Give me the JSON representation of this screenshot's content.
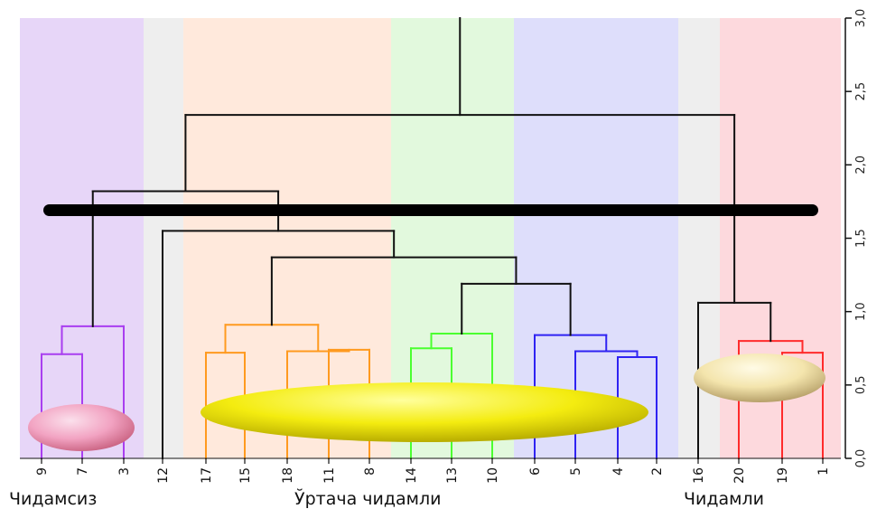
{
  "chart_data": {
    "type": "dendrogram",
    "y_axis": {
      "min": 0.0,
      "max": 3.0,
      "ticks": [
        "0,0",
        "0,5",
        "1,0",
        "1,5",
        "2,0",
        "2,5",
        "3,0"
      ],
      "side": "right"
    },
    "leaves": [
      "9",
      "7",
      "3",
      "12",
      "17",
      "15",
      "18",
      "11",
      "8",
      "14",
      "13",
      "10",
      "6",
      "5",
      "4",
      "2",
      "16",
      "20",
      "19",
      "1"
    ],
    "groups": [
      {
        "label": "Чидамсиз",
        "color": "#e7d6f8"
      },
      {
        "label": "Ўртача чидамли",
        "color": "#ffe9dc"
      },
      {
        "label": "Чидамли",
        "color": "#fdd9dd"
      }
    ],
    "background_bands": [
      {
        "color": "#e7d6f8"
      },
      {
        "color": "#eeeeee"
      },
      {
        "color": "#ffe9dc"
      },
      {
        "color": "#e2f9dd"
      },
      {
        "color": "#dedefb"
      },
      {
        "color": "#eeeeee"
      },
      {
        "color": "#fdd9dd"
      }
    ],
    "branch_colors": {
      "purple": "#a93ef0",
      "orange": "#ff9a1f",
      "green": "#4bff30",
      "blue": "#2f23f2",
      "red": "#ff2b2b",
      "black": "#111111"
    },
    "merges": [
      {
        "a": "9",
        "b": "7",
        "height": 0.71,
        "color": "purple"
      },
      {
        "a": "m1",
        "b": "3",
        "height": 0.9,
        "color": "purple"
      },
      {
        "a": "17",
        "b": "15",
        "height": 0.72,
        "color": "orange"
      },
      {
        "a": "11",
        "b": "8",
        "height": 0.74,
        "color": "orange"
      },
      {
        "a": "18",
        "b": "m4",
        "height": 0.73,
        "color": "orange"
      },
      {
        "a": "m3",
        "b": "m5",
        "height": 0.91,
        "color": "orange"
      },
      {
        "a": "14",
        "b": "13",
        "height": 0.75,
        "color": "green"
      },
      {
        "a": "m7",
        "b": "10",
        "height": 0.85,
        "color": "green"
      },
      {
        "a": "4",
        "b": "2",
        "height": 0.69,
        "color": "blue"
      },
      {
        "a": "5",
        "b": "m9",
        "height": 0.73,
        "color": "blue"
      },
      {
        "a": "6",
        "b": "m10",
        "height": 0.84,
        "color": "blue"
      },
      {
        "a": "m8",
        "b": "m11",
        "height": 1.19,
        "color": "black"
      },
      {
        "a": "m6",
        "b": "m12",
        "height": 1.37,
        "color": "black"
      },
      {
        "a": "12",
        "b": "m13",
        "height": 1.55,
        "color": "black"
      },
      {
        "a": "m2",
        "b": "m14",
        "height": 1.82,
        "color": "black"
      },
      {
        "a": "19",
        "b": "1",
        "height": 0.72,
        "color": "red"
      },
      {
        "a": "20",
        "b": "m16",
        "height": 0.8,
        "color": "red"
      },
      {
        "a": "16",
        "b": "m17",
        "height": 1.06,
        "color": "black"
      },
      {
        "a": "m15",
        "b": "m18",
        "height": 2.34,
        "color": "black"
      },
      {
        "a": "m19",
        "b": "top",
        "height": 3.0,
        "color": "black"
      }
    ],
    "cut_height": 1.7,
    "ellipses": [
      {
        "name": "pink-ellipse",
        "color": "#f3a6c4"
      },
      {
        "name": "yellow-ellipse",
        "color": "#f7f020"
      },
      {
        "name": "cream-ellipse",
        "color": "#f6e9b4"
      }
    ]
  }
}
